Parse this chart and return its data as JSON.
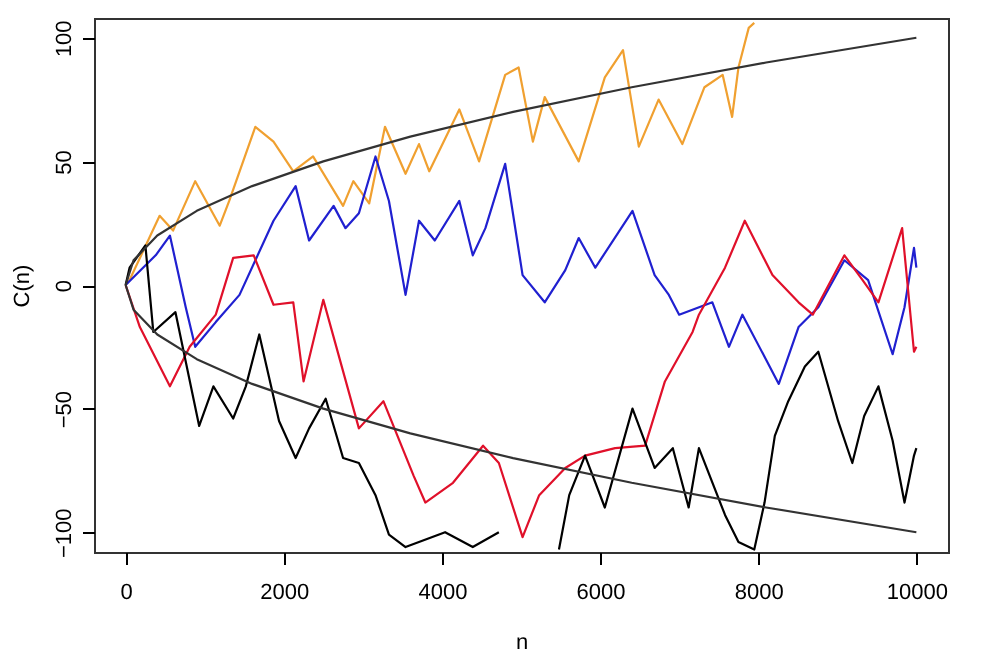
{
  "chart_data": {
    "type": "line",
    "xlabel": "n",
    "ylabel": "C(n)",
    "xlim": [
      -400,
      10400
    ],
    "ylim": [
      -108,
      108
    ],
    "xticks": [
      0,
      2000,
      4000,
      6000,
      8000,
      10000
    ],
    "yticks": [
      -100,
      -50,
      0,
      50,
      100
    ],
    "grid": false,
    "line_style": "solid",
    "marker": "none",
    "series": [
      {
        "color": "#f0a030",
        "x": [
          0,
          50,
          430,
          600,
          880,
          1190,
          1310,
          1640,
          1870,
          2120,
          2370,
          2750,
          2880,
          3080,
          3280,
          3540,
          3710,
          3840,
          4220,
          4470,
          4800,
          4970,
          5150,
          5300,
          5730,
          6060,
          6290,
          6490,
          6740,
          7040,
          7320,
          7550,
          7670,
          7750,
          7880,
          7950
        ],
        "values": [
          0,
          2,
          28,
          22,
          42,
          24,
          34,
          64,
          58,
          46,
          52,
          32,
          42,
          33,
          64,
          45,
          57,
          46,
          71,
          50,
          85,
          88,
          58,
          76,
          50,
          84,
          95,
          56,
          75,
          57,
          80,
          85,
          68,
          88,
          104,
          106
        ]
      },
      {
        "color": "#2020d0",
        "x": [
          0,
          380,
          560,
          760,
          880,
          1140,
          1440,
          1870,
          2150,
          2320,
          2630,
          2780,
          2950,
          3160,
          3330,
          3540,
          3710,
          3910,
          4220,
          4390,
          4550,
          4800,
          5020,
          5300,
          5560,
          5730,
          5940,
          6410,
          6690,
          6870,
          7000,
          7420,
          7630,
          7800,
          8260,
          8510,
          8760,
          9090,
          9390,
          9700,
          9850,
          9970,
          10000
        ],
        "values": [
          0,
          12,
          20,
          -9,
          -25,
          -15,
          -4,
          26,
          40,
          18,
          32,
          23,
          29,
          52,
          34,
          -4,
          26,
          18,
          34,
          12,
          23,
          49,
          4,
          -7,
          6,
          19,
          7,
          30,
          4,
          -4,
          -12,
          -7,
          -25,
          -12,
          -40,
          -17,
          -9,
          10,
          2,
          -28,
          -9,
          15,
          7
        ]
      },
      {
        "color": "#e0102a",
        "x": [
          0,
          180,
          560,
          810,
          1140,
          1360,
          1620,
          1870,
          2120,
          2250,
          2500,
          2950,
          3260,
          3640,
          3790,
          4140,
          4520,
          4720,
          5020,
          5230,
          5560,
          5810,
          6190,
          6570,
          6820,
          7170,
          7250,
          7580,
          7830,
          8180,
          8510,
          8690,
          9090,
          9320,
          9520,
          9820,
          9970,
          10000
        ],
        "values": [
          0,
          -17,
          -41,
          -25,
          -12,
          11,
          12,
          -8,
          -7,
          -39,
          -6,
          -58,
          -47,
          -77,
          -88,
          -80,
          -65,
          -72,
          -102,
          -85,
          -74,
          -69,
          -66,
          -65,
          -39,
          -19,
          -12,
          7,
          26,
          4,
          -7,
          -12,
          12,
          2,
          -7,
          23,
          -27,
          -25
        ]
      },
      {
        "color": "#000000",
        "x": [
          0,
          50,
          250,
          350,
          630,
          930,
          1110,
          1360,
          1520,
          1690,
          1940,
          2150,
          2320,
          2530,
          2750,
          2950,
          3160,
          3330,
          3540,
          4040,
          4390,
          4720,
          5100,
          5480,
          5610,
          5810,
          6060,
          6410,
          6690,
          6920,
          7120,
          7250,
          7580,
          7750,
          7950,
          8080,
          8210,
          8380,
          8590,
          8760,
          9010,
          9190,
          9340,
          9520,
          9700,
          9850,
          9970,
          10000
        ],
        "values": [
          0,
          7,
          16,
          -19,
          -11,
          -57,
          -41,
          -54,
          -41,
          -20,
          -55,
          -70,
          -58,
          -46,
          -70,
          -72,
          -85,
          -101,
          -106,
          -100,
          -106,
          -100,
          null,
          -107,
          -85,
          -69,
          -90,
          -50,
          -74,
          -66,
          -90,
          -66,
          -93,
          -104,
          -107,
          -88,
          -61,
          -47,
          -33,
          -27,
          -55,
          -72,
          -53,
          -41,
          -63,
          -88,
          -69,
          -66
        ]
      },
      {
        "color": "#333333",
        "x": [
          0,
          100,
          400,
          900,
          1600,
          2500,
          3600,
          4900,
          6400,
          8100,
          10000
        ],
        "values": [
          0,
          10,
          20,
          30,
          40,
          50,
          60,
          70,
          80,
          90,
          100
        ]
      },
      {
        "color": "#333333",
        "x": [
          0,
          100,
          400,
          900,
          1600,
          2500,
          3600,
          4900,
          6400,
          8100,
          10000
        ],
        "values": [
          0,
          -10,
          -20,
          -30,
          -40,
          -50,
          -60,
          -70,
          -80,
          -90,
          -100
        ]
      }
    ]
  }
}
